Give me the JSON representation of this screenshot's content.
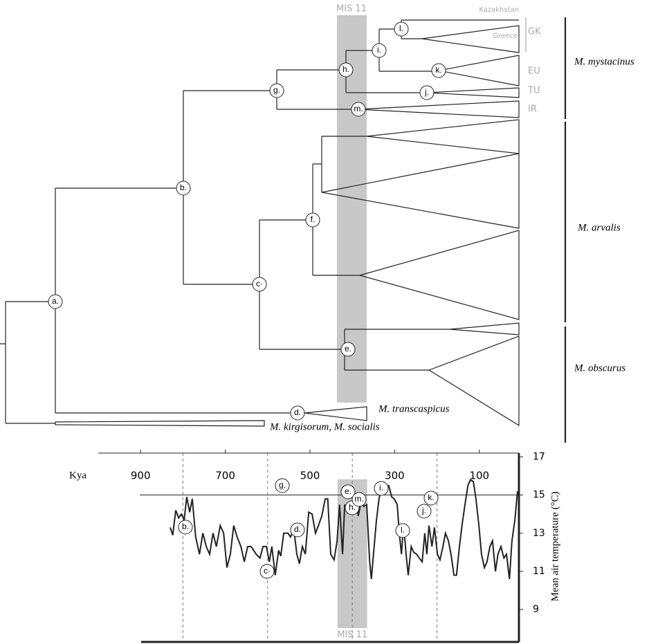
{
  "tree": {
    "mis_label": "MIS 11",
    "nodes": [
      "a.",
      "b.",
      "c·",
      "d.",
      "e.",
      "f.",
      "g.",
      "h.",
      "i.",
      "j.",
      "k.",
      "l.",
      "m."
    ],
    "tips": [
      "Kazakhstan",
      "Greece",
      "GK",
      "EU",
      "TU",
      "IR"
    ],
    "clades": [
      "M. mystacinus",
      "M. arvalis",
      "M. obscurus"
    ],
    "species": [
      "M. transcaspicus",
      "M. kirgisorum, M. socialis"
    ]
  },
  "chart_data": {
    "type": "line",
    "x_label": "Kya",
    "y_label": "Mean air temperature  (°C)",
    "xlim": [
      1000,
      0
    ],
    "xticks": [
      900,
      700,
      500,
      300,
      100
    ],
    "ylim": [
      7.3,
      17.2
    ],
    "yticks": [
      9,
      11,
      13,
      15,
      17
    ],
    "x": [
      830,
      824,
      817,
      810,
      804,
      797,
      791,
      784,
      778,
      770,
      761,
      753,
      745,
      737,
      729,
      721,
      712,
      704,
      696,
      688,
      680,
      672,
      663,
      655,
      647,
      639,
      627,
      618,
      611,
      603,
      596,
      590,
      582,
      574,
      569,
      562,
      557,
      552,
      546,
      538,
      531,
      525,
      518,
      511,
      503,
      495,
      487,
      480,
      472,
      464,
      458,
      451,
      443,
      436,
      430,
      423,
      418,
      412,
      405,
      399,
      392,
      386,
      379,
      373,
      366,
      359,
      355,
      350,
      343,
      337,
      330,
      320,
      314,
      307,
      301,
      294,
      289,
      284,
      279,
      273,
      268,
      261,
      255,
      248,
      242,
      235,
      229,
      224,
      219,
      212,
      206,
      199,
      193,
      186,
      180,
      173,
      167,
      160,
      154,
      147,
      141,
      134,
      127,
      121,
      114,
      108,
      101,
      95,
      88,
      82,
      75,
      69,
      62,
      56,
      49,
      42,
      36,
      29,
      23,
      16,
      10
    ],
    "series": [
      {
        "color": "#222222",
        "values": [
          13.3,
          12.9,
          14.2,
          13.8,
          14.0,
          13.7,
          14.9,
          14.1,
          14.8,
          12.8,
          11.9,
          13.0,
          12.3,
          11.9,
          13.0,
          12.3,
          13.4,
          13.0,
          11.2,
          11.9,
          13.4,
          12.8,
          12.3,
          11.5,
          12.3,
          12.3,
          11.9,
          11.7,
          12.3,
          12.3,
          11.5,
          12.3,
          10.8,
          12.1,
          11.8,
          13.0,
          13.0,
          13.0,
          12.8,
          13.2,
          11.9,
          11.4,
          12.3,
          11.9,
          14.1,
          14.0,
          13.0,
          13.4,
          13.9,
          14.8,
          14.8,
          11.9,
          11.6,
          12.6,
          14.5,
          11.9,
          14.5,
          14.1,
          14.6,
          14.7,
          14.8,
          13.9,
          14.7,
          14.4,
          14.5,
          11.5,
          10.6,
          11.9,
          13.7,
          14.8,
          15.5,
          15.4,
          15.5,
          14.9,
          14.8,
          14.5,
          13.0,
          11.9,
          13.5,
          11.9,
          10.8,
          12.3,
          12.0,
          11.9,
          11.7,
          11.5,
          13.0,
          11.9,
          13.4,
          12.3,
          13.3,
          11.9,
          11.6,
          12.3,
          13.0,
          12.6,
          11.9,
          10.8,
          10.8,
          12.3,
          13.4,
          14.5,
          15.5,
          15.8,
          15.7,
          14.8,
          13.4,
          11.9,
          11.2,
          11.5,
          12.3,
          12.6,
          11.0,
          11.9,
          12.3,
          11.7,
          11.9,
          10.6,
          12.6,
          13.7,
          15.2
        ]
      }
    ],
    "hline": 15,
    "vlines": [
      800,
      600,
      400,
      200
    ],
    "band": [
      435,
      365
    ],
    "band_label": "MIS 11",
    "annotations": [
      "b.",
      "c·",
      "d.",
      "g.",
      "e.",
      "h.",
      "m.",
      "i.",
      "l.",
      "j.",
      "k."
    ]
  }
}
